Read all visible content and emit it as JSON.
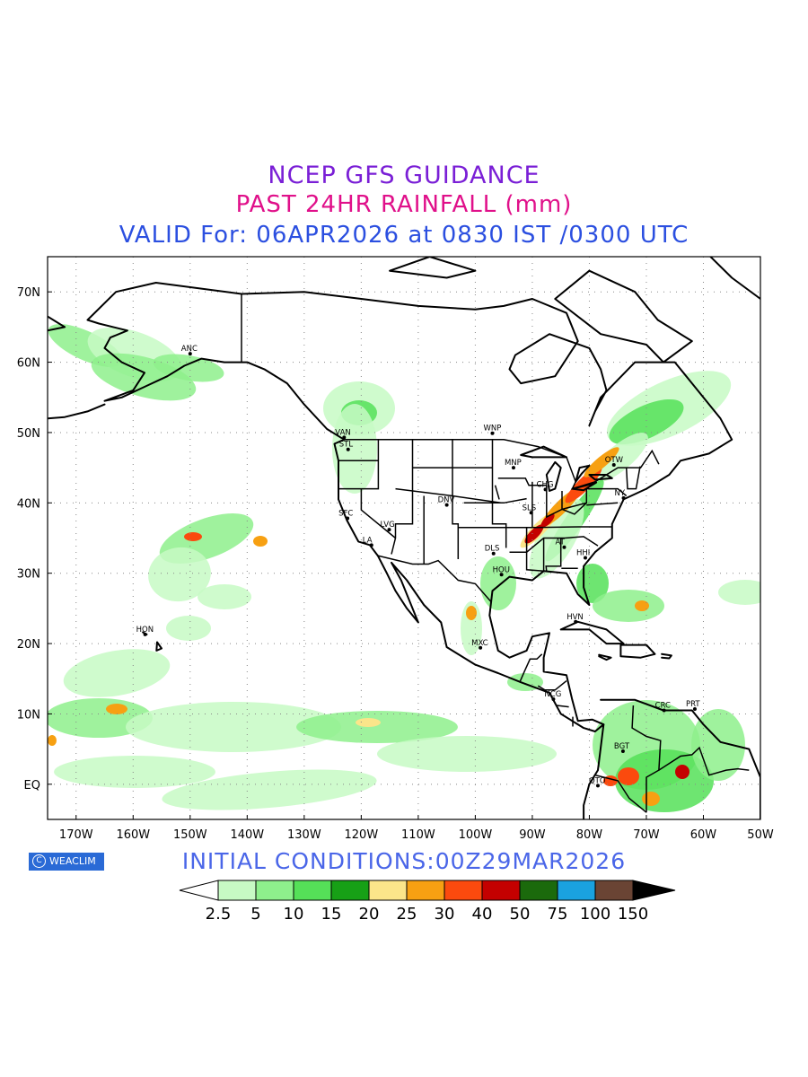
{
  "titles": {
    "line1": "NCEP GFS GUIDANCE",
    "line2": "PAST 24HR RAINFALL (mm)",
    "line3": "VALID For: 06APR2026 at 0830 IST /0300 UTC",
    "line1_color": "#7a1fd6",
    "line2_color": "#e0108a",
    "line3_color": "#2b4fe0"
  },
  "initial_conditions": "INITIAL  CONDITIONS:00Z29MAR2026",
  "initial_conditions_color": "#4a66e8",
  "logo_text": "WEACLIM",
  "axes": {
    "lon_labels": [
      "170W",
      "160W",
      "150W",
      "140W",
      "130W",
      "120W",
      "110W",
      "100W",
      "90W",
      "80W",
      "70W",
      "60W",
      "50W"
    ],
    "lat_labels": [
      "70N",
      "60N",
      "50N",
      "40N",
      "30N",
      "20N",
      "10N",
      "EQ"
    ],
    "lon_range": [
      -175,
      -50
    ],
    "lat_range": [
      -5,
      75
    ]
  },
  "legend": {
    "labels": [
      "2.5",
      "5",
      "10",
      "15",
      "20",
      "25",
      "30",
      "40",
      "50",
      "75",
      "100",
      "150"
    ],
    "colors": [
      "#c7fac4",
      "#8ef08c",
      "#55e058",
      "#17a016",
      "#fbe58a",
      "#f7a012",
      "#fb4a0e",
      "#c40000",
      "#1b6a0c",
      "#1aa2e0",
      "#6a4434"
    ],
    "under_color": "#ffffff",
    "over_color": "#000000"
  },
  "stations": [
    {
      "name": "ANC",
      "lon": -150,
      "lat": 61.2
    },
    {
      "name": "VAN",
      "lon": -123,
      "lat": 49.3
    },
    {
      "name": "STL",
      "lon": -122.3,
      "lat": 47.6
    },
    {
      "name": "WNP",
      "lon": -97,
      "lat": 49.9
    },
    {
      "name": "MNP",
      "lon": -93.3,
      "lat": 45
    },
    {
      "name": "OTW",
      "lon": -75.7,
      "lat": 45.4
    },
    {
      "name": "CHG",
      "lon": -87.7,
      "lat": 41.9
    },
    {
      "name": "DNV",
      "lon": -105,
      "lat": 39.7
    },
    {
      "name": "SFC",
      "lon": -122.4,
      "lat": 37.8
    },
    {
      "name": "LVG",
      "lon": -115.1,
      "lat": 36.2
    },
    {
      "name": "SLS",
      "lon": -90.2,
      "lat": 38.6
    },
    {
      "name": "NY",
      "lon": -74,
      "lat": 40.7
    },
    {
      "name": "LA",
      "lon": -118.2,
      "lat": 34
    },
    {
      "name": "DLS",
      "lon": -96.8,
      "lat": 32.8
    },
    {
      "name": "AT",
      "lon": -84.4,
      "lat": 33.7
    },
    {
      "name": "HOU",
      "lon": -95.4,
      "lat": 29.8
    },
    {
      "name": "HHI",
      "lon": -80.7,
      "lat": 32.2
    },
    {
      "name": "HVN",
      "lon": -82.4,
      "lat": 23.1
    },
    {
      "name": "HON",
      "lon": -157.9,
      "lat": 21.3
    },
    {
      "name": "MXC",
      "lon": -99.1,
      "lat": 19.4
    },
    {
      "name": "NCG",
      "lon": -86.3,
      "lat": 12.1
    },
    {
      "name": "CRC",
      "lon": -66.9,
      "lat": 10.5
    },
    {
      "name": "PRT",
      "lon": -61.5,
      "lat": 10.7
    },
    {
      "name": "BGT",
      "lon": -74.1,
      "lat": 4.7
    },
    {
      "name": "QTO",
      "lon": -78.5,
      "lat": -0.2
    }
  ]
}
